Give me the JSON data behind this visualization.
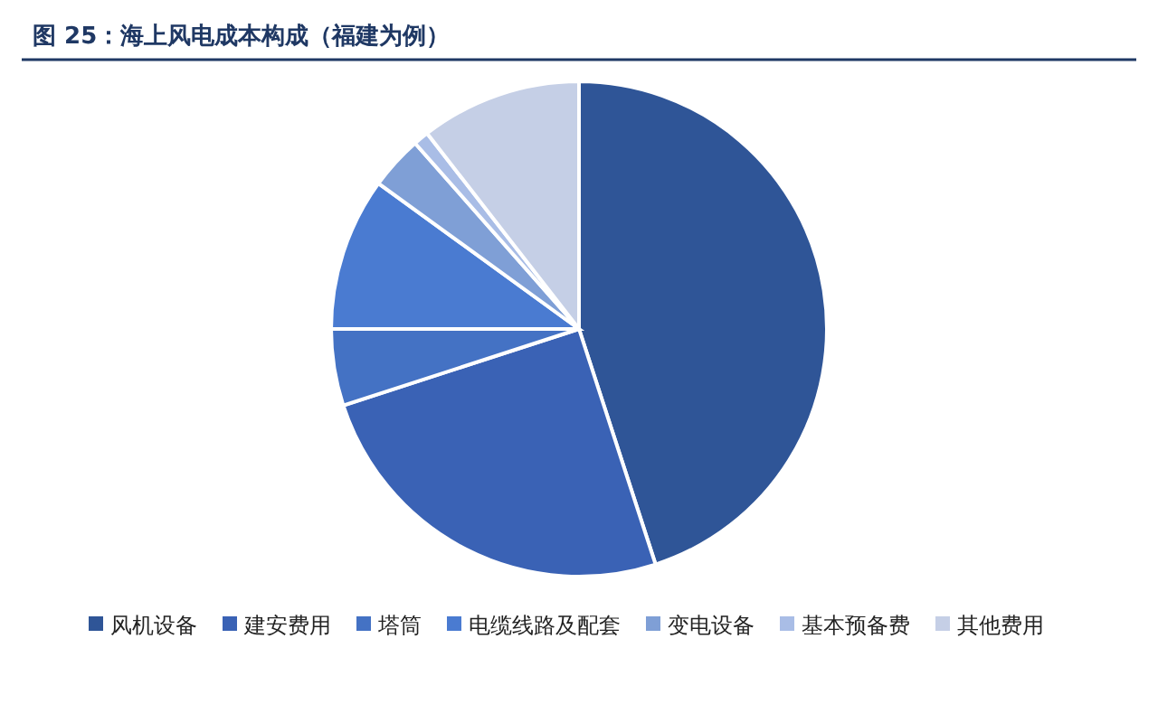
{
  "chart_data": {
    "type": "pie",
    "title": "图 25：海上风电成本构成（福建为例）",
    "categories": [
      "风机设备",
      "建安费用",
      "塔筒",
      "电缆线路及配套",
      "变电设备",
      "基本预备费",
      "其他费用"
    ],
    "values": [
      45,
      25,
      5,
      10,
      3.5,
      1,
      10.5
    ],
    "colors": [
      "#2f5597",
      "#3a62b5",
      "#4472c4",
      "#4a7bd1",
      "#7f9fd6",
      "#a9bde6",
      "#c5cfe6"
    ],
    "legend": "bottom"
  }
}
